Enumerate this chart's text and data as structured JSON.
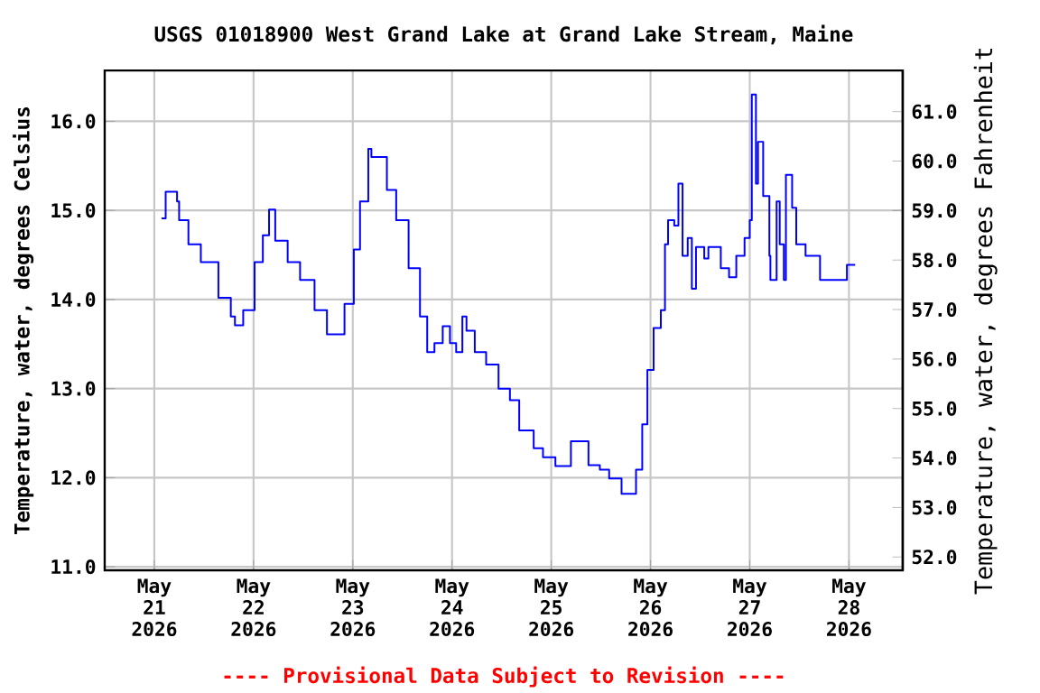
{
  "chart_data": {
    "type": "step",
    "title": "USGS 01018900 West Grand Lake at Grand Lake Stream, Maine",
    "ylabel": "Temperature, water, degrees Celsius",
    "y2label": "Temperature, water, degrees Fahrenheit",
    "annotations": [
      "---- Provisional Data Subject to Revision ----"
    ],
    "color": "#0000ff",
    "grid": true,
    "xlim": [
      "2026-05-20T12:00",
      "2026-05-28T13:00"
    ],
    "xticks": [
      {
        "value": "2026-05-21",
        "label": "May 21 2026"
      },
      {
        "value": "2026-05-22",
        "label": "May 22 2026"
      },
      {
        "value": "2026-05-23",
        "label": "May 23 2026"
      },
      {
        "value": "2026-05-24",
        "label": "May 24 2026"
      },
      {
        "value": "2026-05-25",
        "label": "May 25 2026"
      },
      {
        "value": "2026-05-26",
        "label": "May 26 2026"
      },
      {
        "value": "2026-05-27",
        "label": "May 27 2026"
      },
      {
        "value": "2026-05-28",
        "label": "May 28 2026"
      }
    ],
    "ylim": [
      10.96,
      16.57
    ],
    "yticks": [
      {
        "value": 11,
        "label": "11.0"
      },
      {
        "value": 12,
        "label": "12.0"
      },
      {
        "value": 13,
        "label": "13.0"
      },
      {
        "value": 14,
        "label": "14.0"
      },
      {
        "value": 15,
        "label": "15.0"
      },
      {
        "value": 16,
        "label": "16.0"
      }
    ],
    "y2lim": [
      51.73,
      61.83
    ],
    "y2ticks": [
      {
        "value": 52,
        "label": "52.0"
      },
      {
        "value": 53,
        "label": "53.0"
      },
      {
        "value": 54,
        "label": "54.0"
      },
      {
        "value": 55,
        "label": "55.0"
      },
      {
        "value": 56,
        "label": "56.0"
      },
      {
        "value": 57,
        "label": "57.0"
      },
      {
        "value": 58,
        "label": "58.0"
      },
      {
        "value": 59,
        "label": "59.0"
      },
      {
        "value": 60,
        "label": "60.0"
      },
      {
        "value": 61,
        "label": "61.0"
      }
    ],
    "x": [
      "2026-05-21T01:45",
      "2026-05-21T02:45",
      "2026-05-21T05:30",
      "2026-05-21T06:00",
      "2026-05-21T08:15",
      "2026-05-21T11:15",
      "2026-05-21T15:30",
      "2026-05-21T18:30",
      "2026-05-21T19:30",
      "2026-05-21T21:30",
      "2026-05-22T00:15",
      "2026-05-22T02:15",
      "2026-05-22T03:45",
      "2026-05-22T05:15",
      "2026-05-22T08:15",
      "2026-05-22T11:15",
      "2026-05-22T14:45",
      "2026-05-22T17:45",
      "2026-05-22T19:30",
      "2026-05-22T22:00",
      "2026-05-23T00:15",
      "2026-05-23T01:45",
      "2026-05-23T03:45",
      "2026-05-23T04:30",
      "2026-05-23T06:45",
      "2026-05-23T08:15",
      "2026-05-23T10:30",
      "2026-05-23T13:30",
      "2026-05-23T16:15",
      "2026-05-23T18:00",
      "2026-05-23T19:45",
      "2026-05-23T21:45",
      "2026-05-23T23:30",
      "2026-05-24T01:00",
      "2026-05-24T02:30",
      "2026-05-24T03:30",
      "2026-05-24T05:30",
      "2026-05-24T08:15",
      "2026-05-24T11:15",
      "2026-05-24T14:00",
      "2026-05-24T16:15",
      "2026-05-24T19:45",
      "2026-05-24T22:00",
      "2026-05-25T01:00",
      "2026-05-25T04:45",
      "2026-05-25T06:00",
      "2026-05-25T09:00",
      "2026-05-25T11:45",
      "2026-05-25T14:00",
      "2026-05-25T17:00",
      "2026-05-25T19:15",
      "2026-05-25T20:30",
      "2026-05-25T22:00",
      "2026-05-25T23:15",
      "2026-05-26T00:45",
      "2026-05-26T02:30",
      "2026-05-26T03:30",
      "2026-05-26T04:15",
      "2026-05-26T05:45",
      "2026-05-26T06:45",
      "2026-05-26T07:45",
      "2026-05-26T09:00",
      "2026-05-26T10:00",
      "2026-05-26T11:00",
      "2026-05-26T13:00",
      "2026-05-26T14:00",
      "2026-05-26T17:00",
      "2026-05-26T19:00",
      "2026-05-26T20:45",
      "2026-05-26T22:45",
      "2026-05-27T00:00",
      "2026-05-27T00:30",
      "2026-05-27T01:30",
      "2026-05-27T02:00",
      "2026-05-27T03:15",
      "2026-05-27T04:45",
      "2026-05-27T05:00",
      "2026-05-27T06:30",
      "2026-05-27T07:15",
      "2026-05-27T08:15",
      "2026-05-27T08:45",
      "2026-05-27T10:15",
      "2026-05-27T11:15",
      "2026-05-27T13:30",
      "2026-05-27T17:00",
      "2026-05-27T21:30",
      "2026-05-27T23:30",
      "2026-05-28T01:30"
    ],
    "values": [
      14.91,
      15.21,
      15.1,
      14.89,
      14.62,
      14.42,
      14.02,
      13.81,
      13.71,
      13.88,
      14.42,
      14.72,
      15.01,
      14.66,
      14.42,
      14.22,
      13.88,
      13.61,
      13.61,
      13.95,
      14.56,
      15.1,
      15.69,
      15.6,
      15.6,
      15.23,
      14.89,
      14.35,
      13.81,
      13.41,
      13.51,
      13.7,
      13.51,
      13.41,
      13.81,
      13.65,
      13.41,
      13.27,
      13.0,
      12.87,
      12.53,
      12.33,
      12.23,
      12.13,
      12.41,
      12.41,
      12.14,
      12.09,
      11.99,
      11.82,
      11.82,
      12.09,
      12.6,
      13.21,
      13.68,
      13.88,
      14.62,
      14.89,
      14.83,
      15.3,
      14.49,
      14.69,
      14.12,
      14.59,
      14.46,
      14.59,
      14.35,
      14.25,
      14.49,
      14.69,
      14.89,
      16.3,
      15.3,
      15.77,
      15.16,
      14.49,
      14.22,
      15.1,
      14.62,
      14.22,
      15.4,
      15.03,
      14.62,
      14.49,
      14.22,
      14.22,
      14.39,
      14.39
    ]
  }
}
